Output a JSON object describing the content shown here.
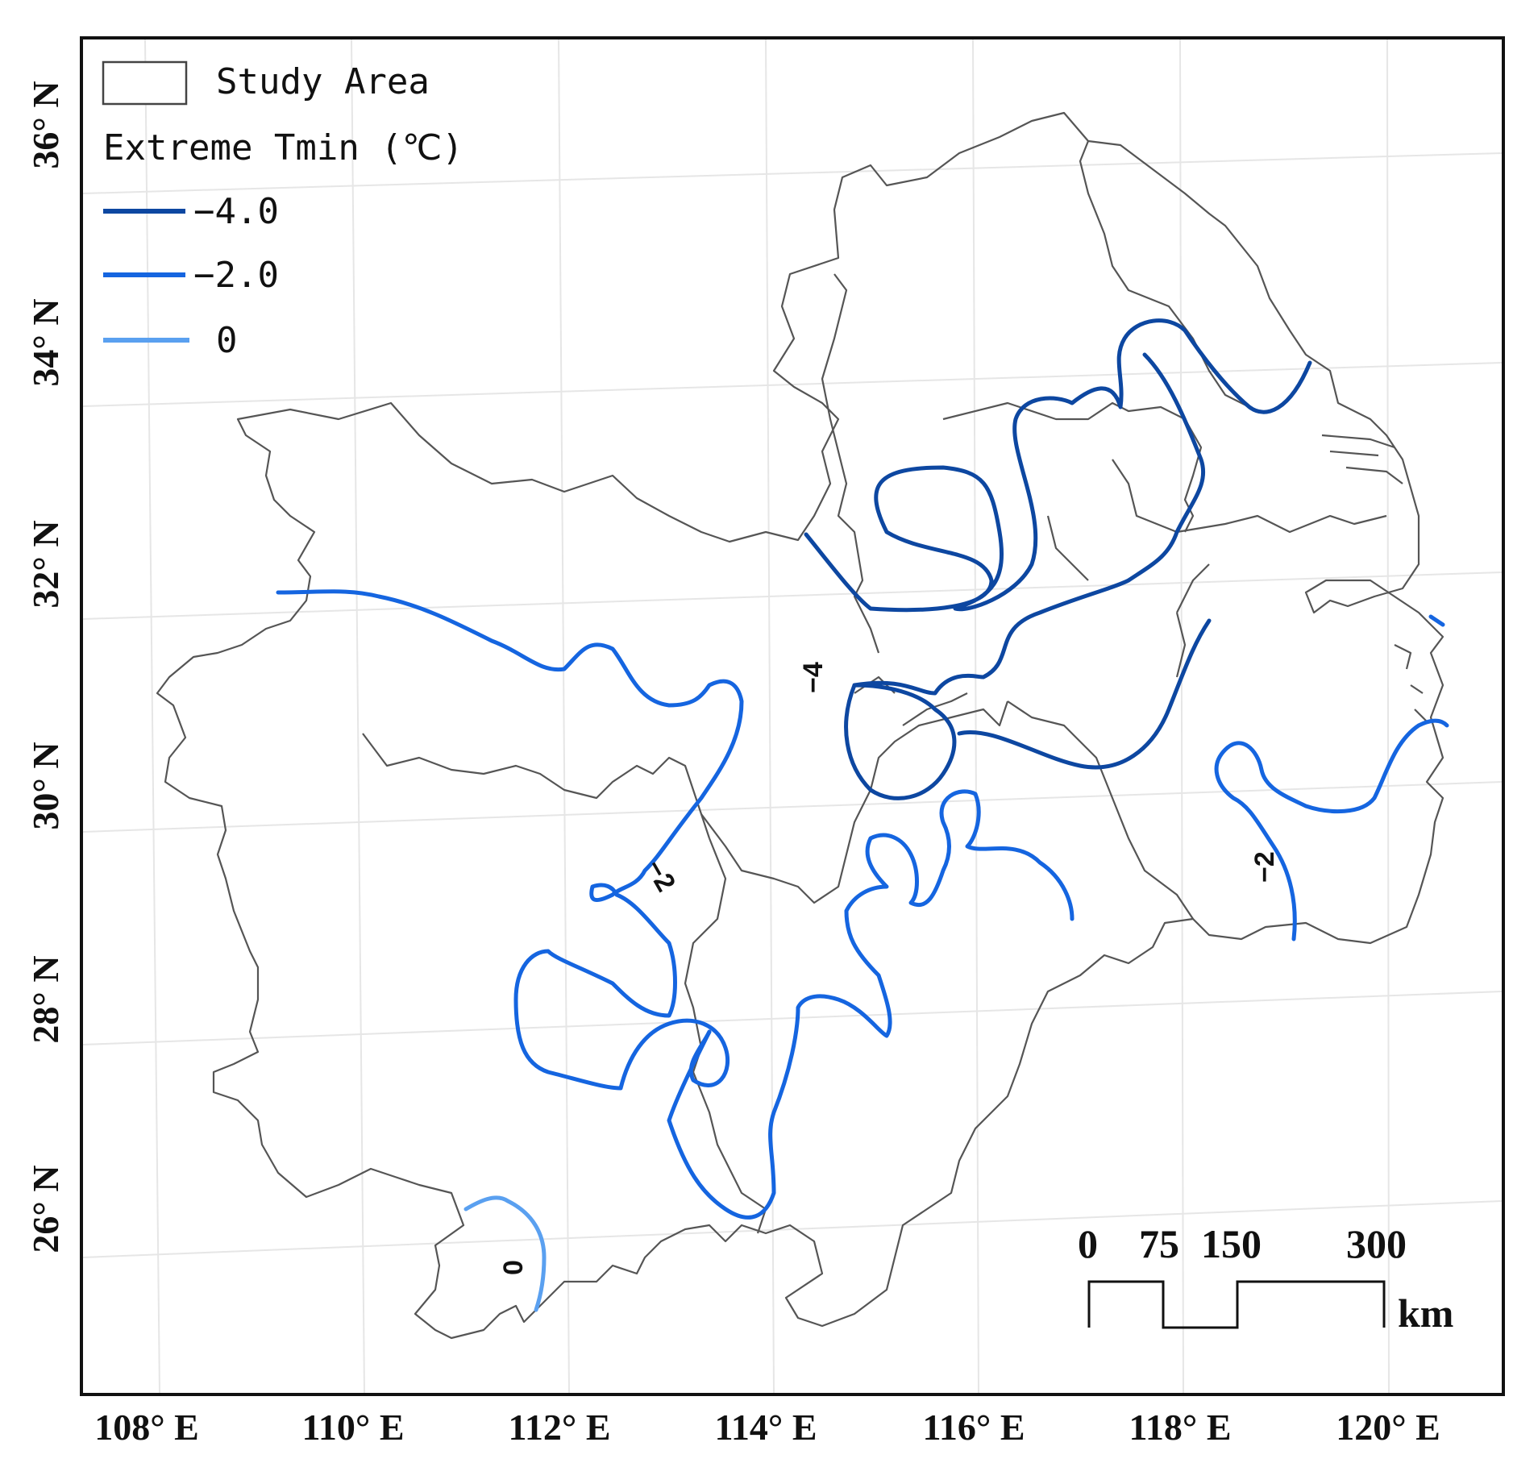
{
  "legend": {
    "study_area_label": "Study Area",
    "title": "Extreme Tmin (℃)",
    "entries": [
      {
        "label": "−4.0",
        "color": "#0d47a1"
      },
      {
        "label": "−2.0",
        "color": "#1565e0"
      },
      {
        "label": "0",
        "color": "#5aa0f0"
      }
    ]
  },
  "axes": {
    "longitude_labels": [
      "108° E",
      "110° E",
      "112° E",
      "114° E",
      "116° E",
      "118° E",
      "120° E"
    ],
    "latitude_labels": [
      "26° N",
      "28° N",
      "30° N",
      "32° N",
      "34° N",
      "36° N"
    ]
  },
  "scale_bar": {
    "labels": [
      "0",
      "75",
      "150",
      "300"
    ],
    "unit": "km"
  },
  "contour_labels": [
    "−4",
    "−2",
    "−2",
    "0"
  ],
  "colors": {
    "boundary": "#555555",
    "graticule": "#e6e6e6",
    "frame": "#111111"
  }
}
